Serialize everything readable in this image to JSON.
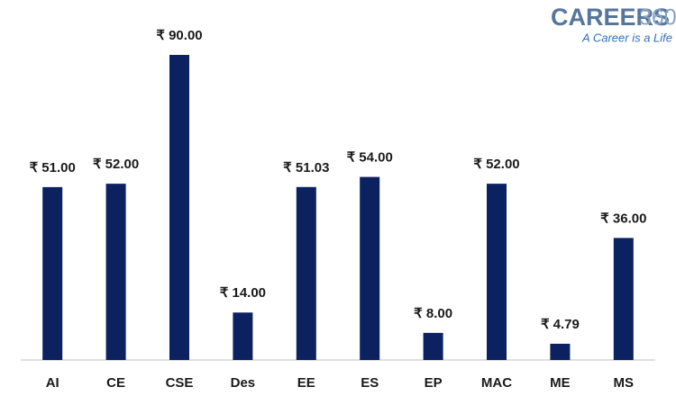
{
  "logo": {
    "brand": "CAREERS",
    "brand_number": "360",
    "tagline": "A Career is a Life"
  },
  "chart_data": {
    "type": "bar",
    "categories": [
      "AI",
      "CE",
      "CSE",
      "Des",
      "EE",
      "ES",
      "EP",
      "MAC",
      "ME",
      "MS"
    ],
    "values": [
      51.0,
      52.0,
      90.0,
      14.0,
      51.03,
      54.0,
      8.0,
      52.0,
      4.79,
      36.0
    ],
    "value_labels": [
      "₹ 51.00",
      "₹ 52.00",
      "₹ 90.00",
      "₹ 14.00",
      "₹ 51.03",
      "₹ 54.00",
      "₹ 8.00",
      "₹ 52.00",
      "₹ 4.79",
      "₹ 36.00"
    ],
    "color": "#0b2160"
  }
}
